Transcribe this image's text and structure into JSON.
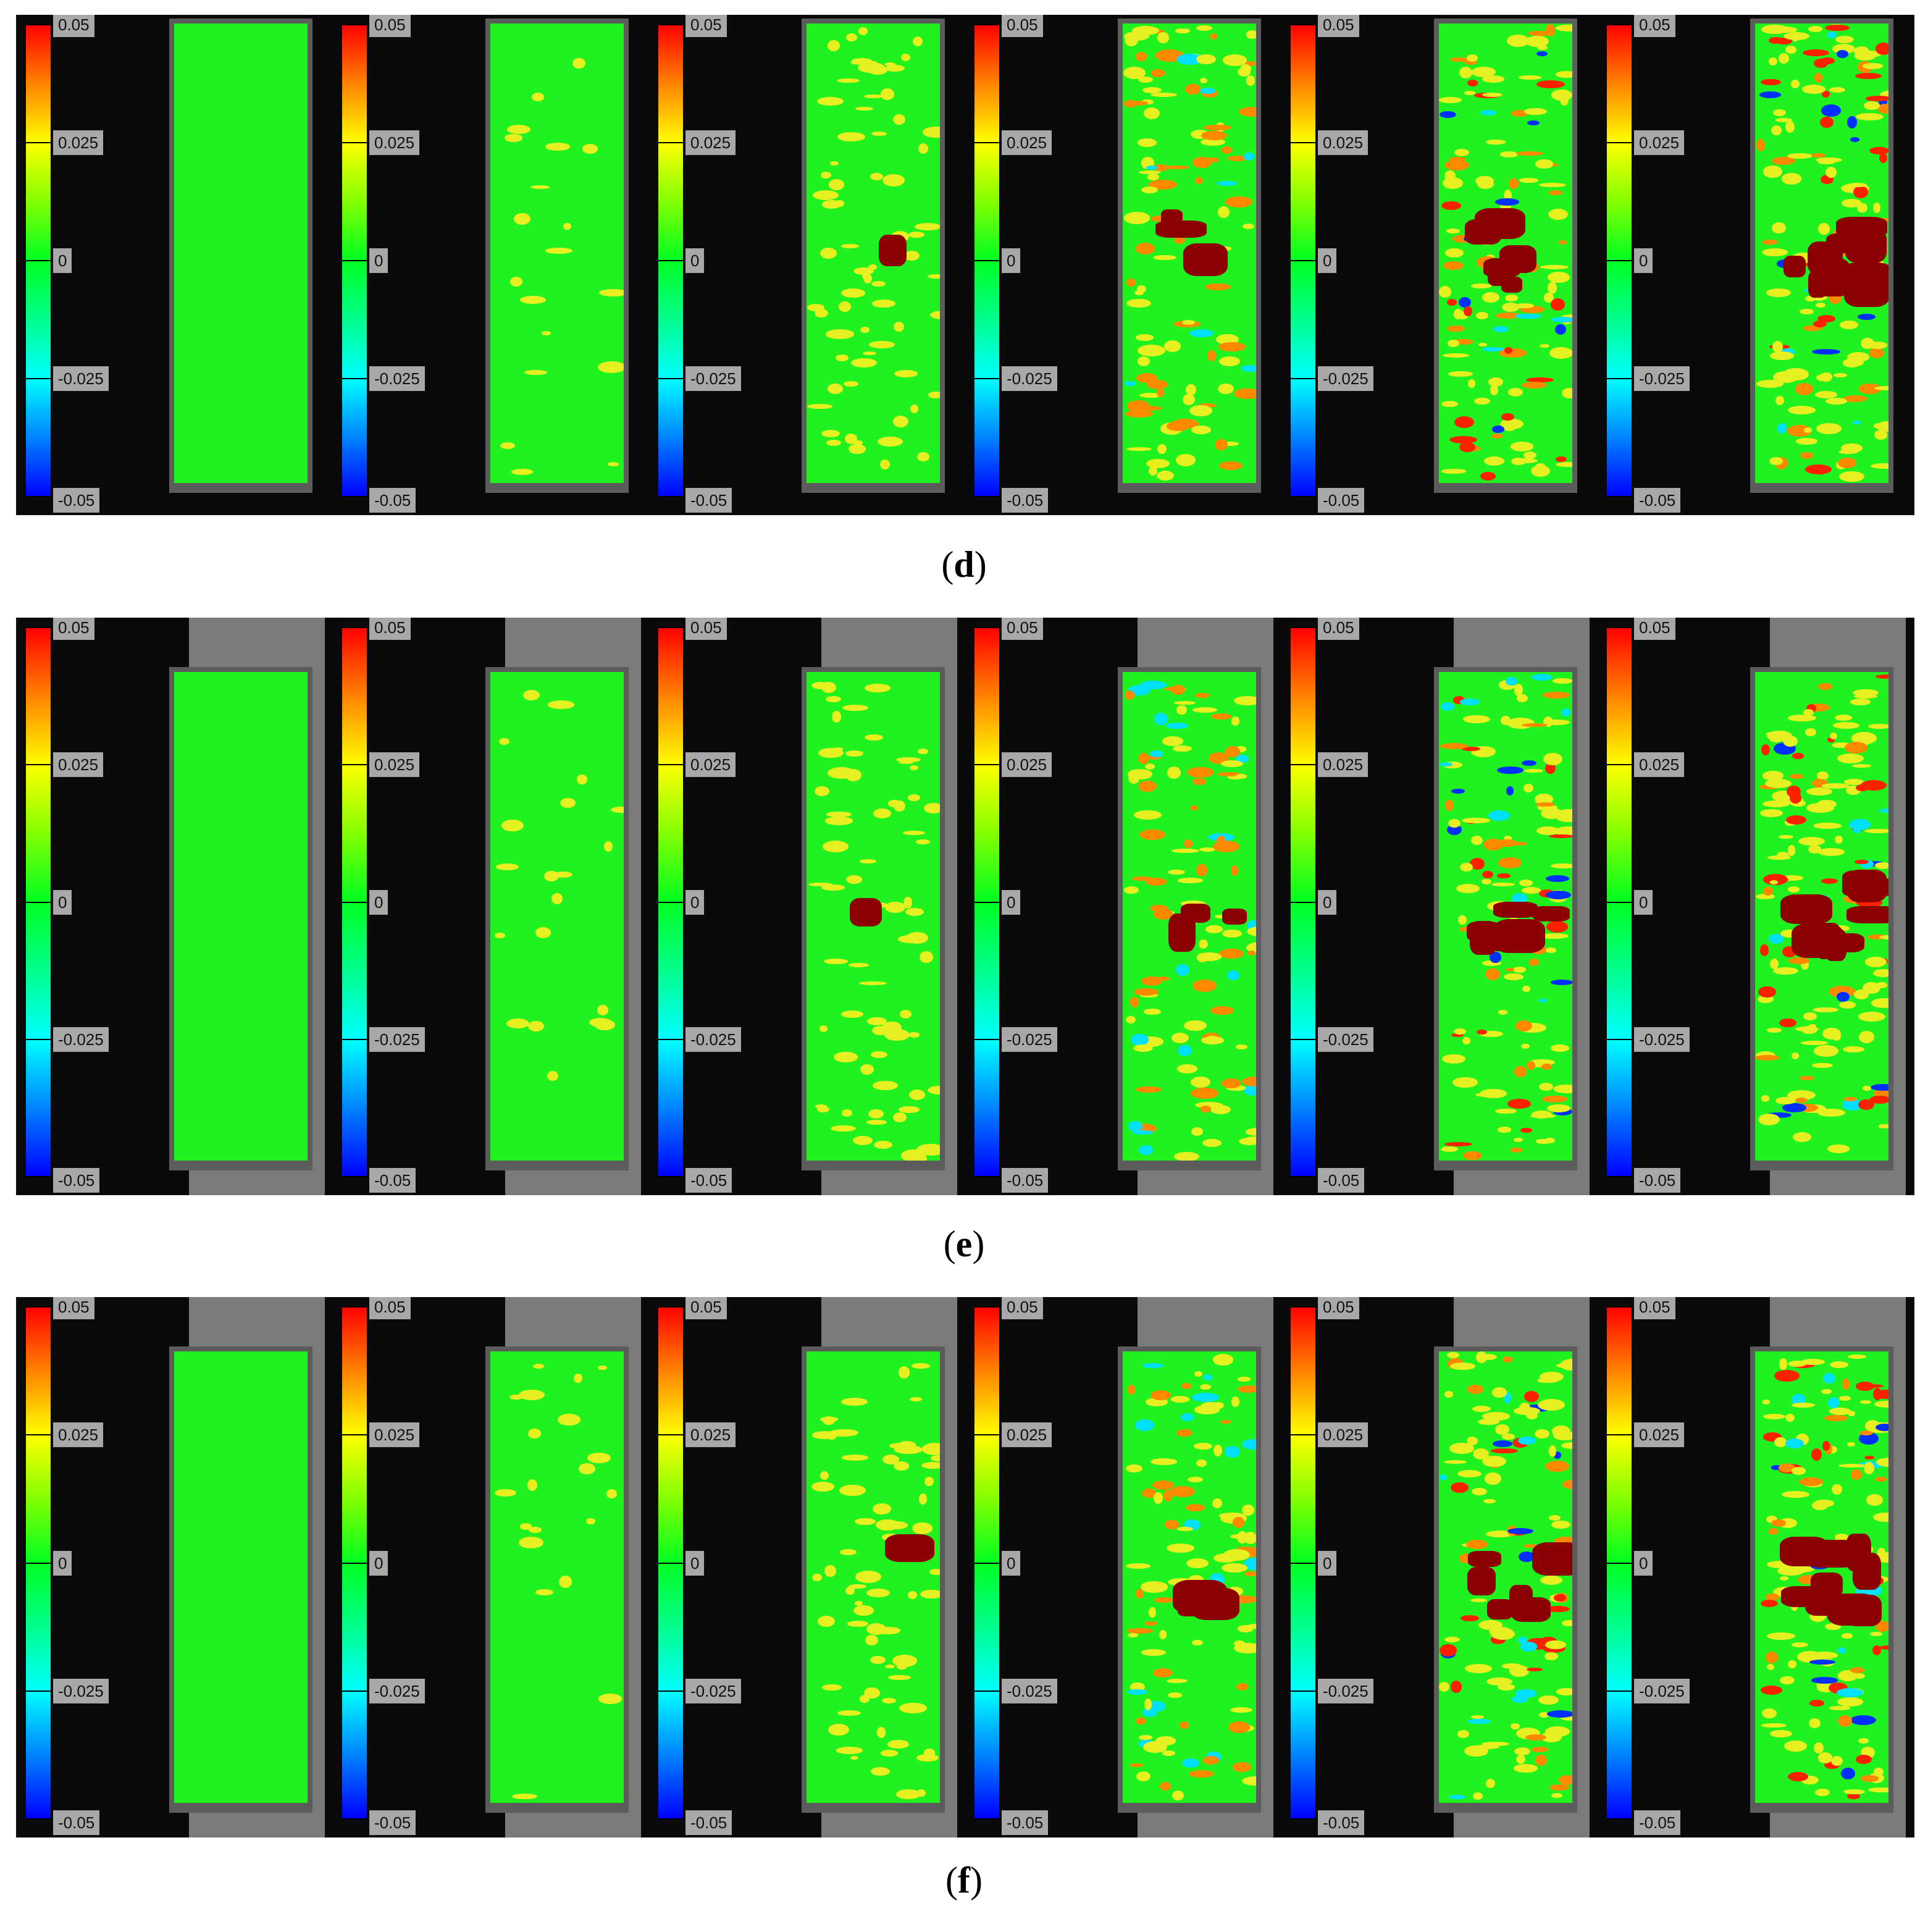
{
  "figure": {
    "colorbar_ticks": [
      "0.05",
      "0.025",
      "0",
      "-0.025",
      "-0.05"
    ],
    "rows": [
      {
        "label": "d",
        "caption_open": "(",
        "caption_close": ")"
      },
      {
        "label": "e",
        "caption_open": "(",
        "caption_close": ")"
      },
      {
        "label": "f",
        "caption_open": "(",
        "caption_close": ")"
      }
    ]
  },
  "colors": {
    "background": "#0a0a0a",
    "field": "#1ff21f",
    "yellow": "#e6f020",
    "orange": "#ff8a00",
    "red": "#ff2000",
    "dark_red": "#8b0000",
    "cyan": "#00e0ff",
    "blue": "#0030ff"
  }
}
